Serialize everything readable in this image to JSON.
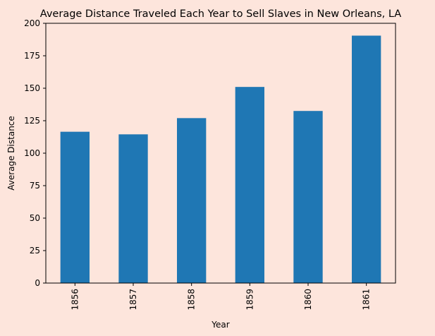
{
  "chart_data": {
    "type": "bar",
    "title": "Average Distance Traveled Each Year to Sell Slaves in New Orleans, LA",
    "xlabel": "Year",
    "ylabel": "Average Distance",
    "categories": [
      "1856",
      "1857",
      "1858",
      "1859",
      "1860",
      "1861"
    ],
    "values": [
      116.5,
      114.5,
      127,
      151,
      132.5,
      190.5
    ],
    "ylim": [
      0,
      200
    ],
    "yticks": [
      0,
      25,
      50,
      75,
      100,
      125,
      150,
      175,
      200
    ],
    "grid": false,
    "legend": "none",
    "bar_color": "#1f77b4",
    "background_color": "#fde5dc"
  }
}
